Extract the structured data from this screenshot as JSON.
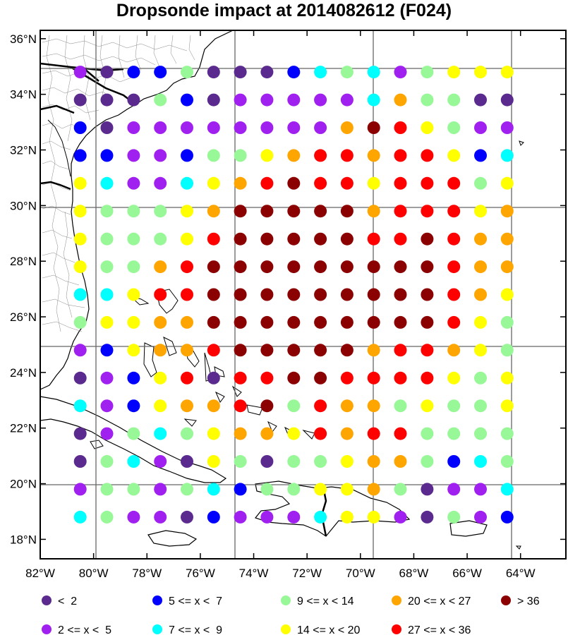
{
  "title": "Dropsonde impact at 2014082612 (F024)",
  "axes": {
    "lat_ticks": [
      "36°N",
      "34°N",
      "32°N",
      "30°N",
      "28°N",
      "26°N",
      "24°N",
      "22°N",
      "20°N",
      "18°N"
    ],
    "lon_ticks": [
      "82°W",
      "80°W",
      "78°W",
      "76°W",
      "74°W",
      "72°W",
      "70°W",
      "68°W",
      "66°W",
      "64°W"
    ]
  },
  "legend": [
    {
      "label": "<  2",
      "color": "#5b2a8e"
    },
    {
      "label": "2 <= x <  5",
      "color": "#a020f0"
    },
    {
      "label": "5 <= x <  7",
      "color": "#0000ff"
    },
    {
      "label": "7 <= x <  9",
      "color": "#00ffff"
    },
    {
      "label": "9 <= x < 14",
      "color": "#98f898"
    },
    {
      "label": "14 <= x < 20",
      "color": "#ffff00"
    },
    {
      "label": "20 <= x < 27",
      "color": "#ffa500"
    },
    {
      "label": "27 <= x < 36",
      "color": "#ff0000"
    },
    {
      "label": "> 36",
      "color": "#8b0000"
    }
  ],
  "chart_data": {
    "type": "scatter",
    "title": "Dropsonde impact at 2014082612 (F024)",
    "xlim": [
      -82,
      -62.3
    ],
    "ylim": [
      17.3,
      36.3
    ],
    "lons": [
      -80.5,
      -79.5,
      -78.5,
      -77.5,
      -76.5,
      -75.5,
      -74.5,
      -73.5,
      -72.5,
      -71.5,
      -70.5,
      -69.5,
      -68.5,
      -67.5,
      -66.5,
      -65.5,
      -64.5
    ],
    "lats": [
      34.8,
      33.8,
      32.8,
      31.8,
      30.8,
      29.8,
      28.8,
      27.8,
      26.8,
      25.8,
      24.8,
      23.8,
      22.8,
      21.8,
      20.8,
      19.8,
      18.8
    ],
    "class_codes": "A=<2, B=2-5, C=5-7, D=7-9, E=9-14, F=14-20, G=20-27, H=27-36, I=>36; rows from north to south, columns from 80.5W to 64.5W",
    "rows": [
      "BACCEAAACDEDBEFFF",
      "AAAECABBBBBDGEEAA",
      "CABBBBBBBBGIHFEBB",
      "CCBBCEEFGHHGHHFCD",
      "FDBBDFGHIHHFHHHEF",
      "FEEEFGIIIIIGHHHFG",
      "FEEEFHIIIIIHHIHGG",
      "FEEGHIIIIIIIIIHGG",
      "DDFHHIIIIIIIIIHGF",
      "EFFGGIIIIIIIIIHFE",
      "BCFGGHIIIIIGHHGFE",
      "ABCFHAHHIIHHHHFEF",
      "DBCFGGHIEHGGEFEEF",
      "ABEDEFGGFHGHHEEEE",
      "AEDBAFEAEEFGGECDE",
      "BEEBEDCEEFFGEABBD",
      "DEBBACBBBDFFBAEBC"
    ]
  }
}
